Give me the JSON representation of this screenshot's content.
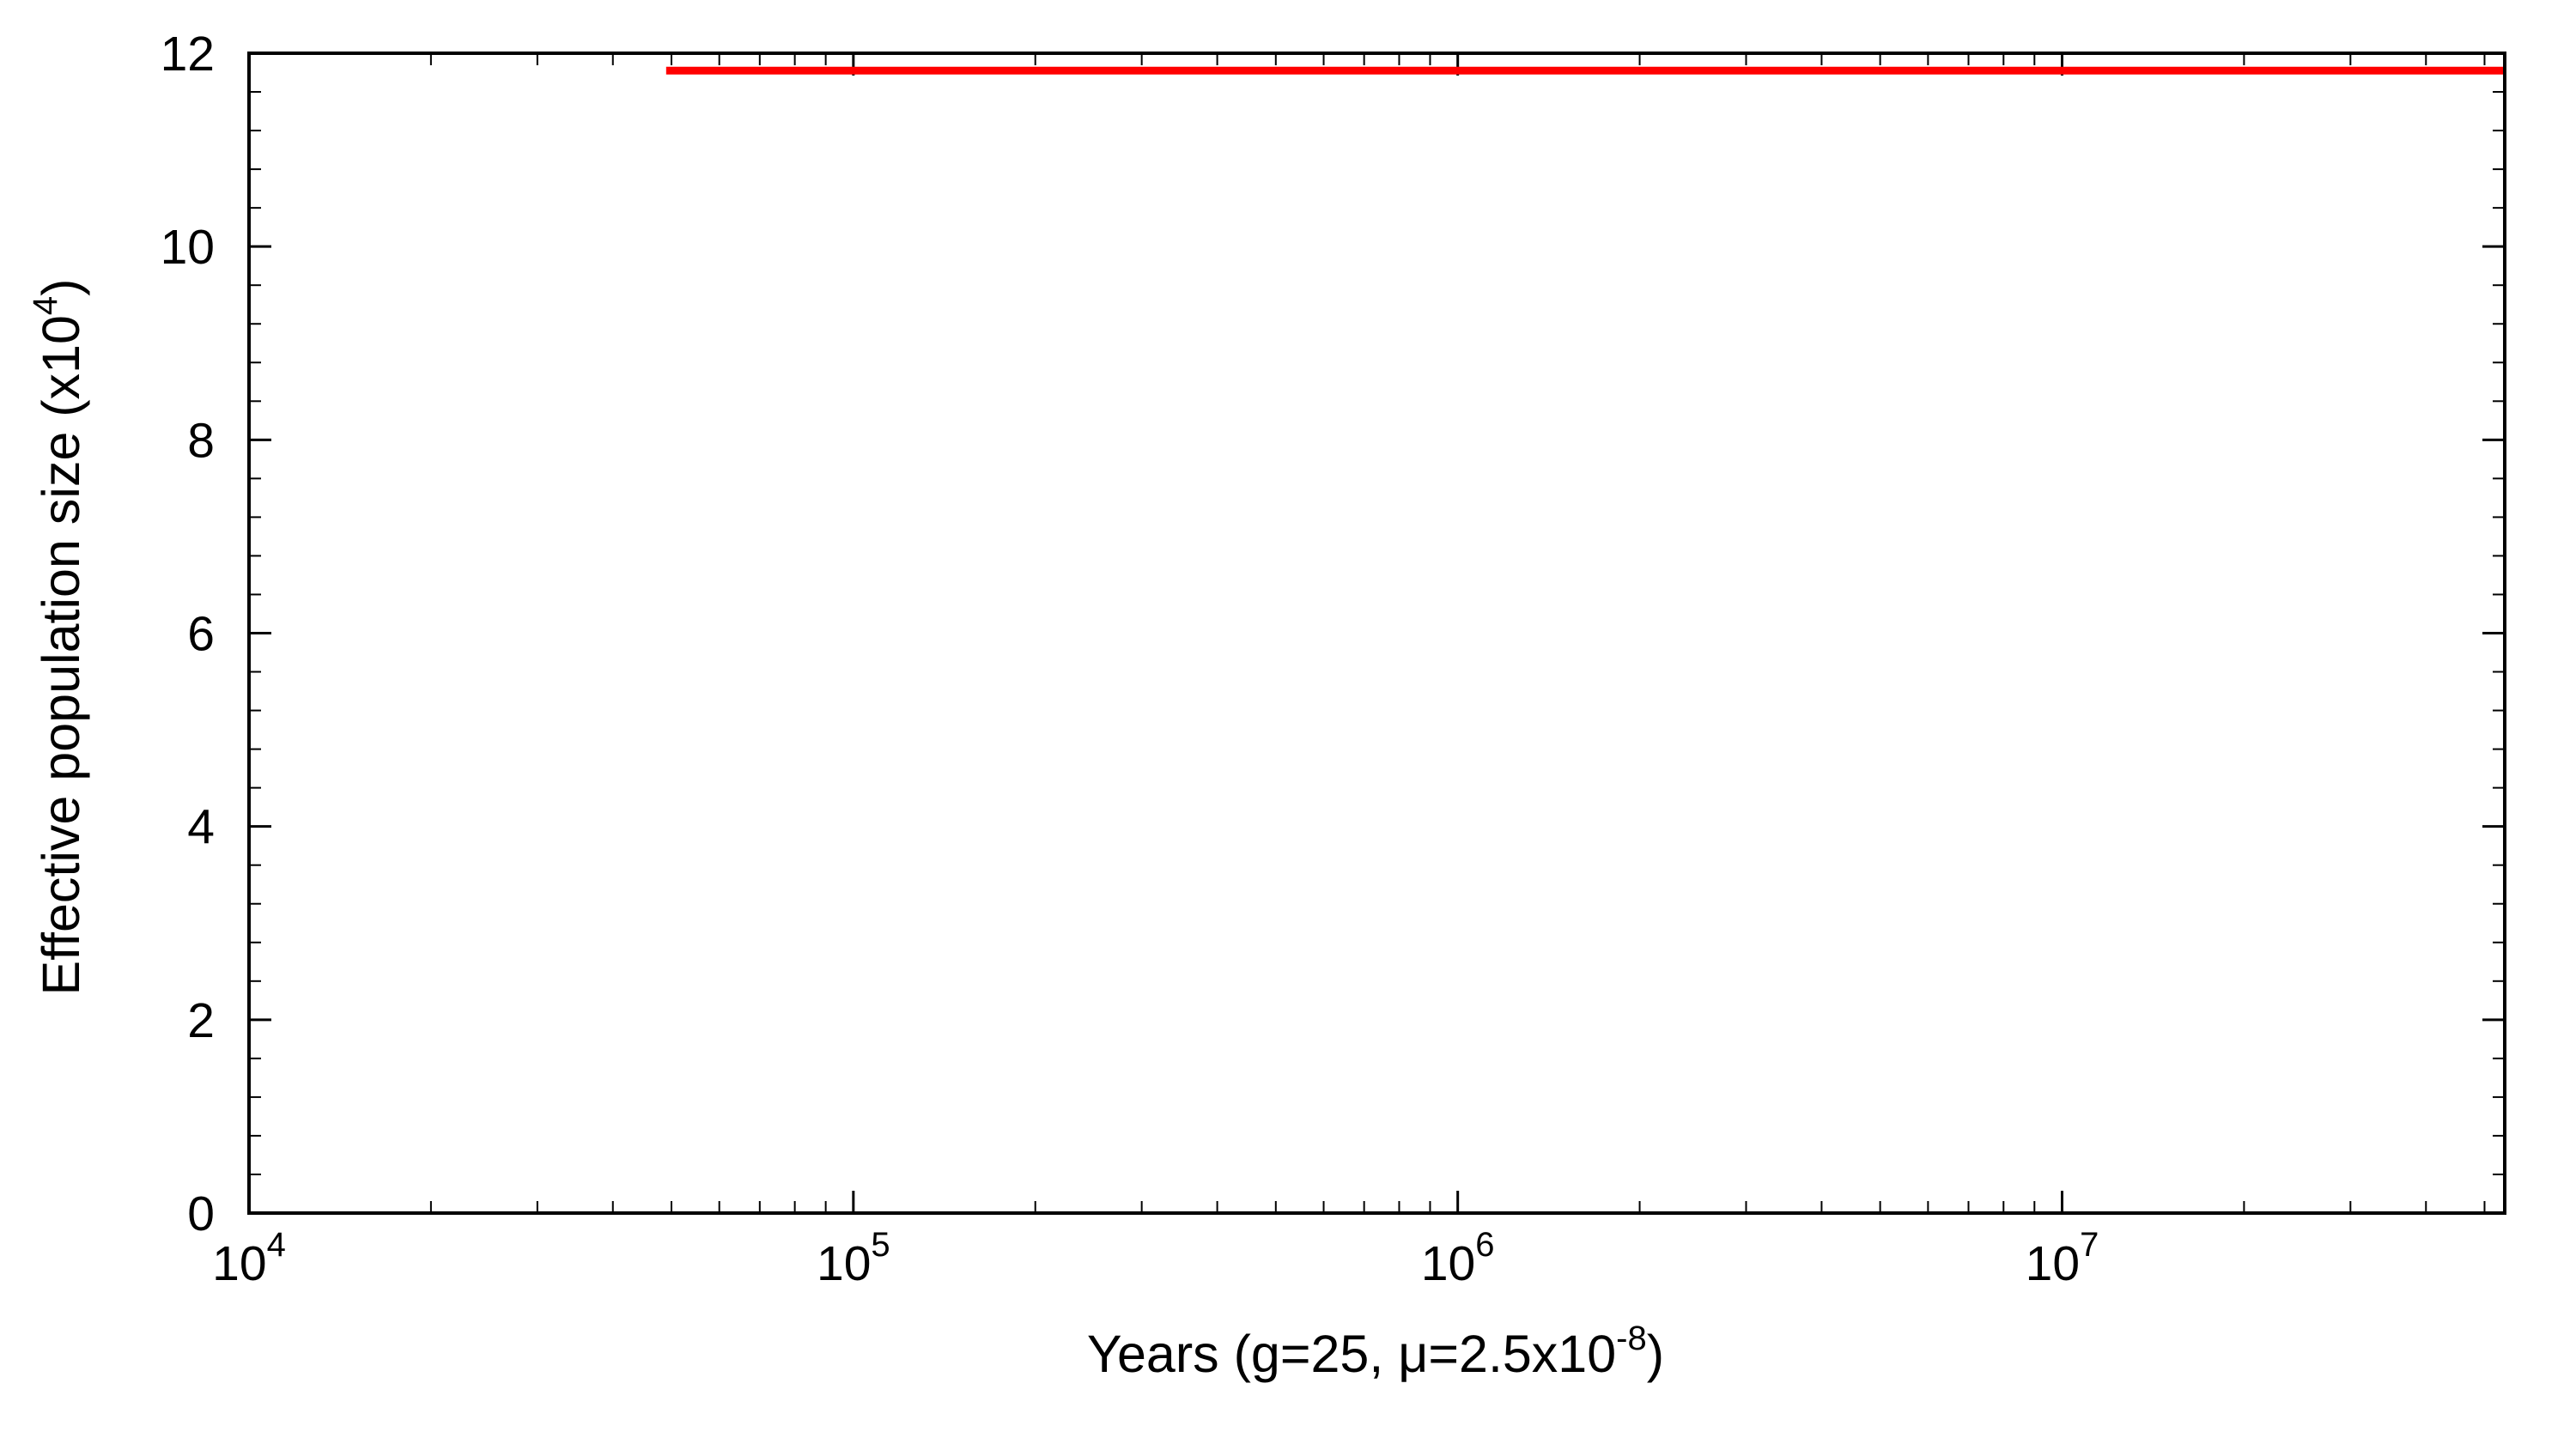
{
  "chart_data": {
    "type": "line",
    "x_scale": "log",
    "xlim": [
      10000,
      54000000
    ],
    "ylim": [
      0,
      12
    ],
    "grid": false,
    "legend": "none",
    "xlabel": {
      "prefix": "Years (g=25, ",
      "mu": "μ",
      "mid": "=2.5x10",
      "sup": "-8",
      "suffix": ")"
    },
    "ylabel": {
      "main": "Effective population size (x10",
      "sup": "4",
      "suffix": ")"
    },
    "y_ticks": [
      {
        "value": 0,
        "label": "0"
      },
      {
        "value": 2,
        "label": "2"
      },
      {
        "value": 4,
        "label": "4"
      },
      {
        "value": 6,
        "label": "6"
      },
      {
        "value": 8,
        "label": "8"
      },
      {
        "value": 10,
        "label": "10"
      },
      {
        "value": 12,
        "label": "12"
      }
    ],
    "x_ticks": [
      {
        "value": 10000,
        "base": "10",
        "exp": "4"
      },
      {
        "value": 100000,
        "base": "10",
        "exp": "5"
      },
      {
        "value": 1000000,
        "base": "10",
        "exp": "6"
      },
      {
        "value": 10000000,
        "base": "10",
        "exp": "7"
      }
    ],
    "series": [
      {
        "color": "#ff0000",
        "x": [
          49000,
          54000000
        ],
        "y": [
          11.82,
          11.82
        ]
      }
    ]
  }
}
